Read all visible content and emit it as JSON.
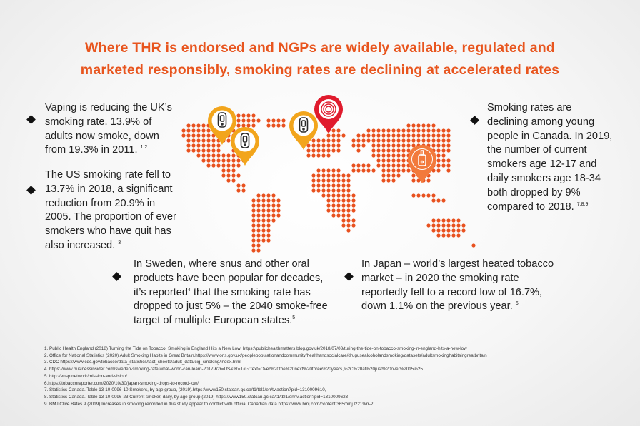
{
  "title": {
    "line1": "Where THR is endorsed and NGPs are widely available, regulated and",
    "line2": "marketed responsibly, smoking rates are declining at accelerated rates"
  },
  "bullets": {
    "uk": {
      "lines": [
        "Vaping is reducing the UK’s",
        "smoking rate. 13.9% of",
        "adults now smoke, down",
        "from 19.3% in 2011."
      ],
      "sup": "1,2"
    },
    "us": {
      "lines": [
        "The US smoking rate fell to",
        "13.7%  in 2018, a significant",
        "reduction from 20.9% in",
        "2005. The proportion of ever",
        "smokers who have quit has",
        "also increased."
      ],
      "sup": "3"
    },
    "sweden": {
      "line1": "In Sweden, where snus and other oral",
      "line2": "products have been popular for decades,",
      "line3_pre": "it’s reported",
      "line3_sup": "4",
      "line3_post": " that the smoking rate has",
      "line4": "dropped to just 5% – the 2040 smoke-free",
      "line5": "target of multiple European states.",
      "sup": "5"
    },
    "canada": {
      "lines": [
        "Smoking rates are",
        "declining among young",
        "people in Canada. In 2019,",
        "the number of current",
        "smokers age 12-17 and",
        "daily smokers age 18-34",
        "both dropped by 9%",
        "compared to 2018."
      ],
      "sup": "7,8,9"
    },
    "japan": {
      "lines": [
        "In Japan  – world’s largest heated tobacco",
        "market – in 2020 the smoking rate",
        "reportedly fell to a record low of 16.7%,",
        "down 1.1% on the previous year."
      ],
      "sup": "6"
    }
  },
  "map": {
    "dot_color": "#e8511f",
    "pins": [
      {
        "name": "uk-pin",
        "icon": "vape-pod-icon",
        "color": "#f2a51c"
      },
      {
        "name": "us-pin",
        "icon": "vape-pod-icon",
        "color": "#f2a51c"
      },
      {
        "name": "sweden-pin",
        "icon": "vape-pod-icon",
        "color": "#f2a51c"
      },
      {
        "name": "canada-pin",
        "icon": "target-icon",
        "color": "#e01b2d"
      },
      {
        "name": "japan-pin",
        "icon": "heated-tobacco-icon",
        "color": "#f27a3c"
      }
    ]
  },
  "references": [
    "1. Public Health England (2018) Turning the Tide on Tobacco: Smoking in England Hits a New Low. https://publichealthmatters.blog.gov.uk/2018/07/03/turing-the-tide-on-tobacco-smoking-in-england-hits-a-new-low",
    "2. Office for National Statistics (2020) Adult Smoking Habits in Great Britain.https://www.ons.gov.uk/peoplepopulationandcommunity/healthandsocialcare/drugusealcoholandsmoking/datasets/adultsmokinghabitsingreatbritain",
    "3. CDC https://www.cdc.gov/tobacco/data_statistics/fact_sheets/adult_data/cig_smoking/index.html",
    "4. https://www.businessinsider.com/sweden-smoking-rate-what-world-can-learn-2017-6?r=US&IR=T#:~:text=Over%20the%20next%20three%20years,%2C%20at%20just%20over%2015%25.",
    "5. http://ensp.network/mission-and-vision/",
    "6.https://tobaccoreporter.com/2020/10/30/japan-smoking-drops-to-record-low/",
    "7. Statistics Canada. Table 13-10-0096-10 Smokers, by age group, (2019).https://www150.statcan.gc.ca/t1/tbl1/en/tv.action?pid=1310009610,",
    "8. Statistics Canada. Table 13-10-0096-23 Current smoker, daily, by age group,(2019) https://www150.statcan.gc.ca/t1/tbl1/en/tv.action?pid=1310009623",
    "9. BMJ Clive Bates 9 (2019)  Increases in smoking recorded in this study appear to conflict with official Canadian data https://www.bmj.com/content/365/bmj.l2219/rr-2"
  ]
}
